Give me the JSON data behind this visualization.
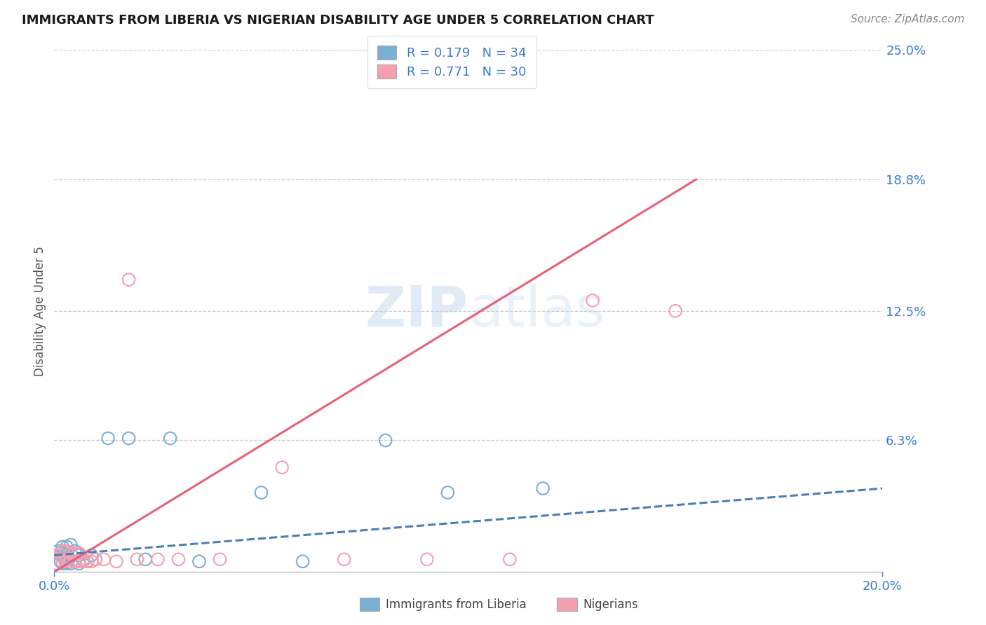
{
  "title": "IMMIGRANTS FROM LIBERIA VS NIGERIAN DISABILITY AGE UNDER 5 CORRELATION CHART",
  "source": "Source: ZipAtlas.com",
  "ylabel": "Disability Age Under 5",
  "xlim": [
    0.0,
    0.2
  ],
  "ylim": [
    0.0,
    0.25
  ],
  "ytick_vals": [
    0.063,
    0.125,
    0.188,
    0.25
  ],
  "ytick_labels": [
    "6.3%",
    "12.5%",
    "18.8%",
    "25.0%"
  ],
  "xtick_vals": [
    0.0,
    0.2
  ],
  "xtick_labels": [
    "0.0%",
    "20.0%"
  ],
  "bg_color": "#ffffff",
  "grid_color": "#cccccc",
  "color_liberia": "#7bafd4",
  "color_nigeria": "#f4a0b0",
  "color_liberia_line": "#4a7fb5",
  "color_nigeria_line": "#e8607a",
  "liberia_x": [
    0.0005,
    0.001,
    0.001,
    0.0015,
    0.0015,
    0.002,
    0.002,
    0.002,
    0.0025,
    0.003,
    0.003,
    0.003,
    0.0035,
    0.004,
    0.004,
    0.004,
    0.005,
    0.005,
    0.006,
    0.006,
    0.007,
    0.008,
    0.009,
    0.01,
    0.013,
    0.018,
    0.022,
    0.028,
    0.035,
    0.05,
    0.06,
    0.08,
    0.095,
    0.118
  ],
  "liberia_y": [
    0.004,
    0.006,
    0.01,
    0.005,
    0.009,
    0.004,
    0.008,
    0.012,
    0.006,
    0.004,
    0.008,
    0.012,
    0.006,
    0.004,
    0.009,
    0.013,
    0.005,
    0.01,
    0.004,
    0.008,
    0.006,
    0.005,
    0.008,
    0.006,
    0.064,
    0.064,
    0.006,
    0.064,
    0.005,
    0.038,
    0.005,
    0.063,
    0.038,
    0.04
  ],
  "nigeria_x": [
    0.0005,
    0.001,
    0.0015,
    0.002,
    0.002,
    0.003,
    0.003,
    0.004,
    0.004,
    0.005,
    0.005,
    0.006,
    0.006,
    0.007,
    0.008,
    0.009,
    0.01,
    0.012,
    0.015,
    0.018,
    0.02,
    0.025,
    0.03,
    0.04,
    0.055,
    0.07,
    0.09,
    0.11,
    0.13,
    0.15
  ],
  "nigeria_y": [
    0.004,
    0.006,
    0.008,
    0.005,
    0.01,
    0.006,
    0.01,
    0.005,
    0.009,
    0.005,
    0.009,
    0.005,
    0.009,
    0.005,
    0.005,
    0.005,
    0.006,
    0.006,
    0.005,
    0.14,
    0.006,
    0.006,
    0.006,
    0.006,
    0.05,
    0.006,
    0.006,
    0.006,
    0.13,
    0.125
  ],
  "liberia_trend": [
    0.0,
    0.2,
    0.005,
    0.038
  ],
  "nigeria_trend": [
    0.0,
    0.155,
    0.0,
    0.188
  ],
  "bottom_legend": [
    "Immigrants from Liberia",
    "Nigerians"
  ]
}
